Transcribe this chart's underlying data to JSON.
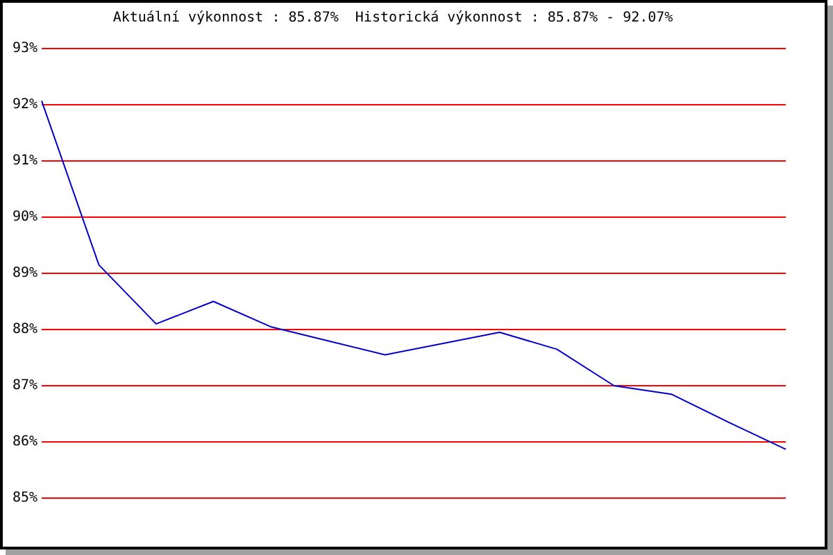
{
  "chart_data": {
    "type": "line",
    "title": "Aktuální výkonnost : 85.87%  Historická výkonnost : 85.87% - 92.07%",
    "categories": [
      null,
      null,
      null,
      null,
      null,
      null,
      null,
      null,
      null,
      null,
      null,
      null,
      null,
      null
    ],
    "values": [
      92.07,
      89.15,
      88.1,
      88.5,
      88.05,
      87.8,
      87.55,
      87.75,
      87.95,
      87.65,
      87.0,
      86.85,
      86.35,
      85.87
    ],
    "color": "#0000cc",
    "ylim": [
      85,
      93
    ],
    "yticks": [
      {
        "value": 85,
        "label": "85%"
      },
      {
        "value": 86,
        "label": "86%"
      },
      {
        "value": 87,
        "label": "87%"
      },
      {
        "value": 88,
        "label": "88%"
      },
      {
        "value": 89,
        "label": "89%"
      },
      {
        "value": 90,
        "label": "90%"
      },
      {
        "value": 91,
        "label": "91%"
      },
      {
        "value": 92,
        "label": "92%"
      },
      {
        "value": 93,
        "label": "93%"
      }
    ],
    "grid": "y",
    "tick_labels": "y"
  }
}
